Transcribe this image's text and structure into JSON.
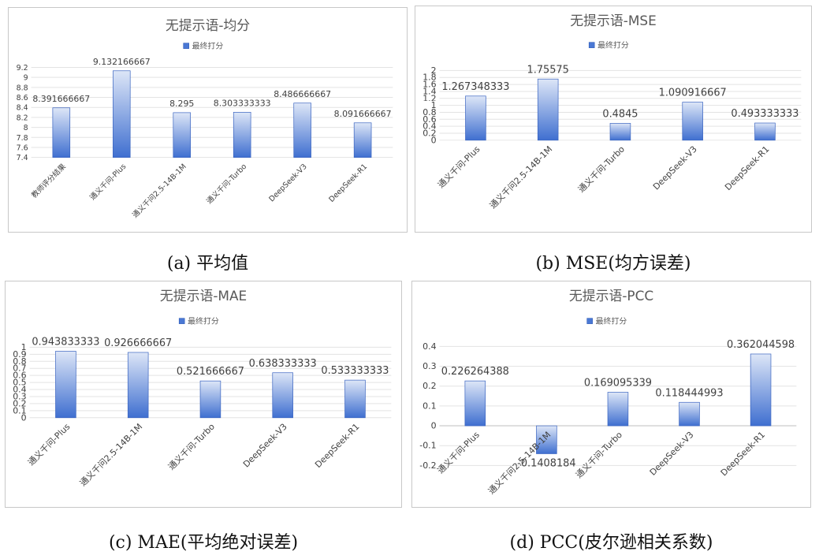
{
  "chart_data": [
    {
      "type": "bar",
      "title": "无提示语-均分",
      "legend": "最终打分",
      "legend_placement": "top",
      "grid": true,
      "caption": "(a) 平均值",
      "categories": [
        "教师评分结果",
        "通义千问-Plus",
        "通义千问2.5-14B-1M",
        "通义千问-Turbo",
        "DeepSeek-V3",
        "DeepSeek-R1"
      ],
      "values": [
        8.391666667,
        9.132166667,
        8.295,
        8.303333333,
        8.486666667,
        8.091666667
      ],
      "labels": [
        "8.391666667",
        "9.132166667",
        "8.295",
        "8.303333333",
        "8.486666667",
        "8.091666667"
      ],
      "ylim": [
        7.4,
        9.2
      ],
      "yticks": [
        "7.4",
        "7.6",
        "7.8",
        "8",
        "8.2",
        "8.4",
        "8.6",
        "8.8",
        "9",
        "9.2"
      ]
    },
    {
      "type": "bar",
      "title": "无提示语-MSE",
      "legend": "最终打分",
      "legend_placement": "top",
      "grid": true,
      "caption": "(b) MSE(均方误差)",
      "categories": [
        "通义千问-Plus",
        "通义千问2.5-14B-1M",
        "通义千问-Turbo",
        "DeepSeek-V3",
        "DeepSeek-R1"
      ],
      "values": [
        1.267348333,
        1.75575,
        0.4845,
        1.090916667,
        0.493333333
      ],
      "labels": [
        "1.267348333",
        "1.75575",
        "0.4845",
        "1.090916667",
        "0.493333333"
      ],
      "ylim": [
        0,
        2
      ],
      "yticks": [
        "0",
        "0.2",
        "0.4",
        "0.6",
        "0.8",
        "1",
        "1.2",
        "1.4",
        "1.6",
        "1.8",
        "2"
      ]
    },
    {
      "type": "bar",
      "title": "无提示语-MAE",
      "legend": "最终打分",
      "legend_placement": "top",
      "grid": true,
      "caption": "(c) MAE(平均绝对误差)",
      "categories": [
        "通义千问-Plus",
        "通义千问2.5-14B-1M",
        "通义千问-Turbo",
        "DeepSeek-V3",
        "DeepSeek-R1"
      ],
      "values": [
        0.943833333,
        0.926666667,
        0.521666667,
        0.638333333,
        0.533333333
      ],
      "labels": [
        "0.943833333",
        "0.926666667",
        "0.521666667",
        "0.638333333",
        "0.533333333"
      ],
      "ylim": [
        0,
        1
      ],
      "yticks": [
        "0",
        "0.1",
        "0.2",
        "0.3",
        "0.4",
        "0.5",
        "0.6",
        "0.7",
        "0.8",
        "0.9",
        "1"
      ]
    },
    {
      "type": "bar",
      "title": "无提示语-PCC",
      "legend": "最终打分",
      "legend_placement": "top",
      "grid": true,
      "caption": "(d) PCC(皮尔逊相关系数)",
      "categories": [
        "通义千问-Plus",
        "通义千问2.5-14B-1M",
        "通义千问-Turbo",
        "DeepSeek-V3",
        "DeepSeek-R1"
      ],
      "values": [
        0.226264388,
        -0.1408184,
        0.169095339,
        0.118444993,
        0.362044598
      ],
      "labels": [
        "0.226264388",
        "-0.1408184",
        "0.169095339",
        "0.118444993",
        "0.362044598"
      ],
      "ylim": [
        -0.2,
        0.4
      ],
      "yticks": [
        "-0.2",
        "-0.1",
        "0",
        "0.1",
        "0.2",
        "0.3",
        "0.4"
      ]
    }
  ]
}
